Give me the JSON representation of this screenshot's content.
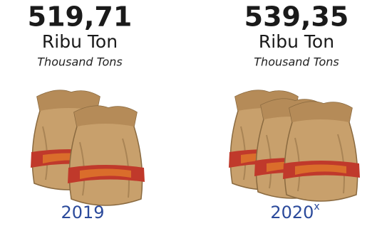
{
  "items": [
    {
      "value": "519,71",
      "unit": "Ribu Ton",
      "unit_en": "Thousand Tons",
      "year": "2019"
    },
    {
      "value": "539,35",
      "unit": "Ribu Ton",
      "unit_en": "Thousand Tons",
      "year": "2020",
      "note_mark": "x"
    }
  ]
}
